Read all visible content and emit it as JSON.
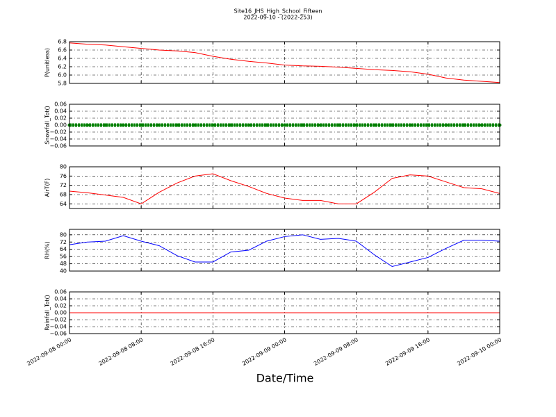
{
  "title": "Site16_JHS_High_School_Fifteen",
  "subtitle": "2022-09-10 - (2022-253)",
  "xlabel": "Date/Time",
  "chart_data": [
    {
      "type": "line",
      "ylabel": "P(unitless)",
      "color": "#ff0000",
      "marker": false,
      "grid": true,
      "x": [
        "2022-09-08 00:00",
        "2022-09-08 02:00",
        "2022-09-08 04:00",
        "2022-09-08 06:00",
        "2022-09-08 08:00",
        "2022-09-08 10:00",
        "2022-09-08 12:00",
        "2022-09-08 14:00",
        "2022-09-08 16:00",
        "2022-09-08 18:00",
        "2022-09-08 20:00",
        "2022-09-08 22:00",
        "2022-09-09 00:00",
        "2022-09-09 02:00",
        "2022-09-09 04:00",
        "2022-09-09 06:00",
        "2022-09-09 08:00",
        "2022-09-09 10:00",
        "2022-09-09 12:00",
        "2022-09-09 14:00",
        "2022-09-09 16:00",
        "2022-09-09 18:00",
        "2022-09-09 20:00",
        "2022-09-09 22:00",
        "2022-09-10 00:00"
      ],
      "values": [
        6.77,
        6.74,
        6.72,
        6.68,
        6.64,
        6.6,
        6.58,
        6.54,
        6.45,
        6.38,
        6.33,
        6.29,
        6.24,
        6.22,
        6.21,
        6.19,
        6.16,
        6.13,
        6.11,
        6.08,
        6.02,
        5.93,
        5.88,
        5.85,
        5.82
      ],
      "xlim": [
        "2022-09-08 00:00",
        "2022-09-10 00:00"
      ],
      "xticks": [
        "2022-09-08 00:00",
        "2022-09-08 08:00",
        "2022-09-08 16:00",
        "2022-09-09 00:00",
        "2022-09-09 08:00",
        "2022-09-09 16:00",
        "2022-09-10 00:00"
      ],
      "ylim": [
        5.8,
        6.8
      ],
      "yticks": [
        5.8,
        {
          "value": 6,
          "label": "6.0"
        },
        6.2,
        6.4,
        6.6,
        6.8
      ]
    },
    {
      "type": "line",
      "ylabel": "Snowfall_Tot()",
      "color": "#008000",
      "marker": true,
      "grid": true,
      "x": [
        "2022-09-08 00:00",
        "2022-09-08 02:00",
        "2022-09-08 04:00",
        "2022-09-08 06:00",
        "2022-09-08 08:00",
        "2022-09-08 10:00",
        "2022-09-08 12:00",
        "2022-09-08 14:00",
        "2022-09-08 16:00",
        "2022-09-08 18:00",
        "2022-09-08 20:00",
        "2022-09-08 22:00",
        "2022-09-09 00:00",
        "2022-09-09 02:00",
        "2022-09-09 04:00",
        "2022-09-09 06:00",
        "2022-09-09 08:00",
        "2022-09-09 10:00",
        "2022-09-09 12:00",
        "2022-09-09 14:00",
        "2022-09-09 16:00",
        "2022-09-09 18:00",
        "2022-09-09 20:00",
        "2022-09-09 22:00",
        "2022-09-10 00:00"
      ],
      "values": [
        0,
        0,
        0,
        0,
        0,
        0,
        0,
        0,
        0,
        0,
        0,
        0,
        0,
        0,
        0,
        0,
        0,
        0,
        0,
        0,
        0,
        0,
        0,
        0,
        0
      ],
      "xlim": [
        "2022-09-08 00:00",
        "2022-09-10 00:00"
      ],
      "xticks": [
        "2022-09-08 00:00",
        "2022-09-08 08:00",
        "2022-09-08 16:00",
        "2022-09-09 00:00",
        "2022-09-09 08:00",
        "2022-09-09 16:00",
        "2022-09-10 00:00"
      ],
      "ylim": [
        -0.06,
        0.06
      ],
      "yticks": [
        {
          "value": -0.06,
          "label": "−0.06"
        },
        {
          "value": -0.04,
          "label": "−0.04"
        },
        {
          "value": -0.02,
          "label": "−0.02"
        },
        {
          "value": 0,
          "label": "0.00"
        },
        0.02,
        0.04,
        0.06
      ]
    },
    {
      "type": "line",
      "ylabel": "AirT(F)",
      "color": "#ff0000",
      "marker": false,
      "grid": true,
      "x": [
        "2022-09-08 00:00",
        "2022-09-08 02:00",
        "2022-09-08 04:00",
        "2022-09-08 06:00",
        "2022-09-08 08:00",
        "2022-09-08 10:00",
        "2022-09-08 12:00",
        "2022-09-08 14:00",
        "2022-09-08 16:00",
        "2022-09-08 18:00",
        "2022-09-08 20:00",
        "2022-09-08 22:00",
        "2022-09-09 00:00",
        "2022-09-09 02:00",
        "2022-09-09 04:00",
        "2022-09-09 06:00",
        "2022-09-09 08:00",
        "2022-09-09 10:00",
        "2022-09-09 12:00",
        "2022-09-09 14:00",
        "2022-09-09 16:00",
        "2022-09-09 18:00",
        "2022-09-09 20:00",
        "2022-09-09 22:00",
        "2022-09-10 00:00"
      ],
      "values": [
        69.5,
        68.8,
        67.8,
        66.8,
        64,
        69,
        73,
        76,
        77,
        74,
        71.5,
        68.5,
        66.5,
        65.5,
        65.5,
        64,
        64,
        69,
        75,
        76.5,
        76,
        73.5,
        71,
        70.5,
        68.5
      ],
      "xlim": [
        "2022-09-08 00:00",
        "2022-09-10 00:00"
      ],
      "xticks": [
        "2022-09-08 00:00",
        "2022-09-08 08:00",
        "2022-09-08 16:00",
        "2022-09-09 00:00",
        "2022-09-09 08:00",
        "2022-09-09 16:00",
        "2022-09-10 00:00"
      ],
      "ylim": [
        62,
        80
      ],
      "yticks": [
        64,
        68,
        72,
        76,
        80
      ]
    },
    {
      "type": "line",
      "ylabel": "RH(%)",
      "color": "#0000ff",
      "marker": false,
      "grid": true,
      "x": [
        "2022-09-08 00:00",
        "2022-09-08 02:00",
        "2022-09-08 04:00",
        "2022-09-08 06:00",
        "2022-09-08 08:00",
        "2022-09-08 10:00",
        "2022-09-08 12:00",
        "2022-09-08 14:00",
        "2022-09-08 16:00",
        "2022-09-08 18:00",
        "2022-09-08 20:00",
        "2022-09-08 22:00",
        "2022-09-09 00:00",
        "2022-09-09 02:00",
        "2022-09-09 04:00",
        "2022-09-09 06:00",
        "2022-09-09 08:00",
        "2022-09-09 10:00",
        "2022-09-09 12:00",
        "2022-09-09 14:00",
        "2022-09-09 16:00",
        "2022-09-09 18:00",
        "2022-09-09 20:00",
        "2022-09-09 22:00",
        "2022-09-10 00:00"
      ],
      "values": [
        69,
        72,
        73,
        79,
        73,
        68,
        57,
        50,
        50,
        61,
        63,
        73,
        78,
        80,
        75,
        76,
        73,
        58,
        45,
        50,
        55,
        65,
        74,
        74,
        73
      ],
      "xlim": [
        "2022-09-08 00:00",
        "2022-09-10 00:00"
      ],
      "xticks": [
        "2022-09-08 00:00",
        "2022-09-08 08:00",
        "2022-09-08 16:00",
        "2022-09-09 00:00",
        "2022-09-09 08:00",
        "2022-09-09 16:00",
        "2022-09-10 00:00"
      ],
      "ylim": [
        40,
        86
      ],
      "yticks": [
        40,
        48,
        56,
        64,
        72,
        80
      ]
    },
    {
      "type": "line",
      "ylabel": "Rainfall_Tot()",
      "color": "#ff0000",
      "marker": false,
      "grid": true,
      "x": [
        "2022-09-08 00:00",
        "2022-09-08 02:00",
        "2022-09-08 04:00",
        "2022-09-08 06:00",
        "2022-09-08 08:00",
        "2022-09-08 10:00",
        "2022-09-08 12:00",
        "2022-09-08 14:00",
        "2022-09-08 16:00",
        "2022-09-08 18:00",
        "2022-09-08 20:00",
        "2022-09-08 22:00",
        "2022-09-09 00:00",
        "2022-09-09 02:00",
        "2022-09-09 04:00",
        "2022-09-09 06:00",
        "2022-09-09 08:00",
        "2022-09-09 10:00",
        "2022-09-09 12:00",
        "2022-09-09 14:00",
        "2022-09-09 16:00",
        "2022-09-09 18:00",
        "2022-09-09 20:00",
        "2022-09-09 22:00",
        "2022-09-10 00:00"
      ],
      "values": [
        0,
        0,
        0,
        0,
        0,
        0,
        0,
        0,
        0,
        0,
        0,
        0,
        0,
        0,
        0,
        0,
        0,
        0,
        0,
        0,
        0,
        0,
        0,
        0,
        0
      ],
      "xlim": [
        "2022-09-08 00:00",
        "2022-09-10 00:00"
      ],
      "xticks": [
        "2022-09-08 00:00",
        "2022-09-08 08:00",
        "2022-09-08 16:00",
        "2022-09-09 00:00",
        "2022-09-09 08:00",
        "2022-09-09 16:00",
        "2022-09-10 00:00"
      ],
      "ylim": [
        -0.06,
        0.06
      ],
      "yticks": [
        {
          "value": -0.06,
          "label": "−0.06"
        },
        {
          "value": -0.04,
          "label": "−0.04"
        },
        {
          "value": -0.02,
          "label": "−0.02"
        },
        {
          "value": 0,
          "label": "0.00"
        },
        0.02,
        0.04,
        0.06
      ]
    }
  ]
}
